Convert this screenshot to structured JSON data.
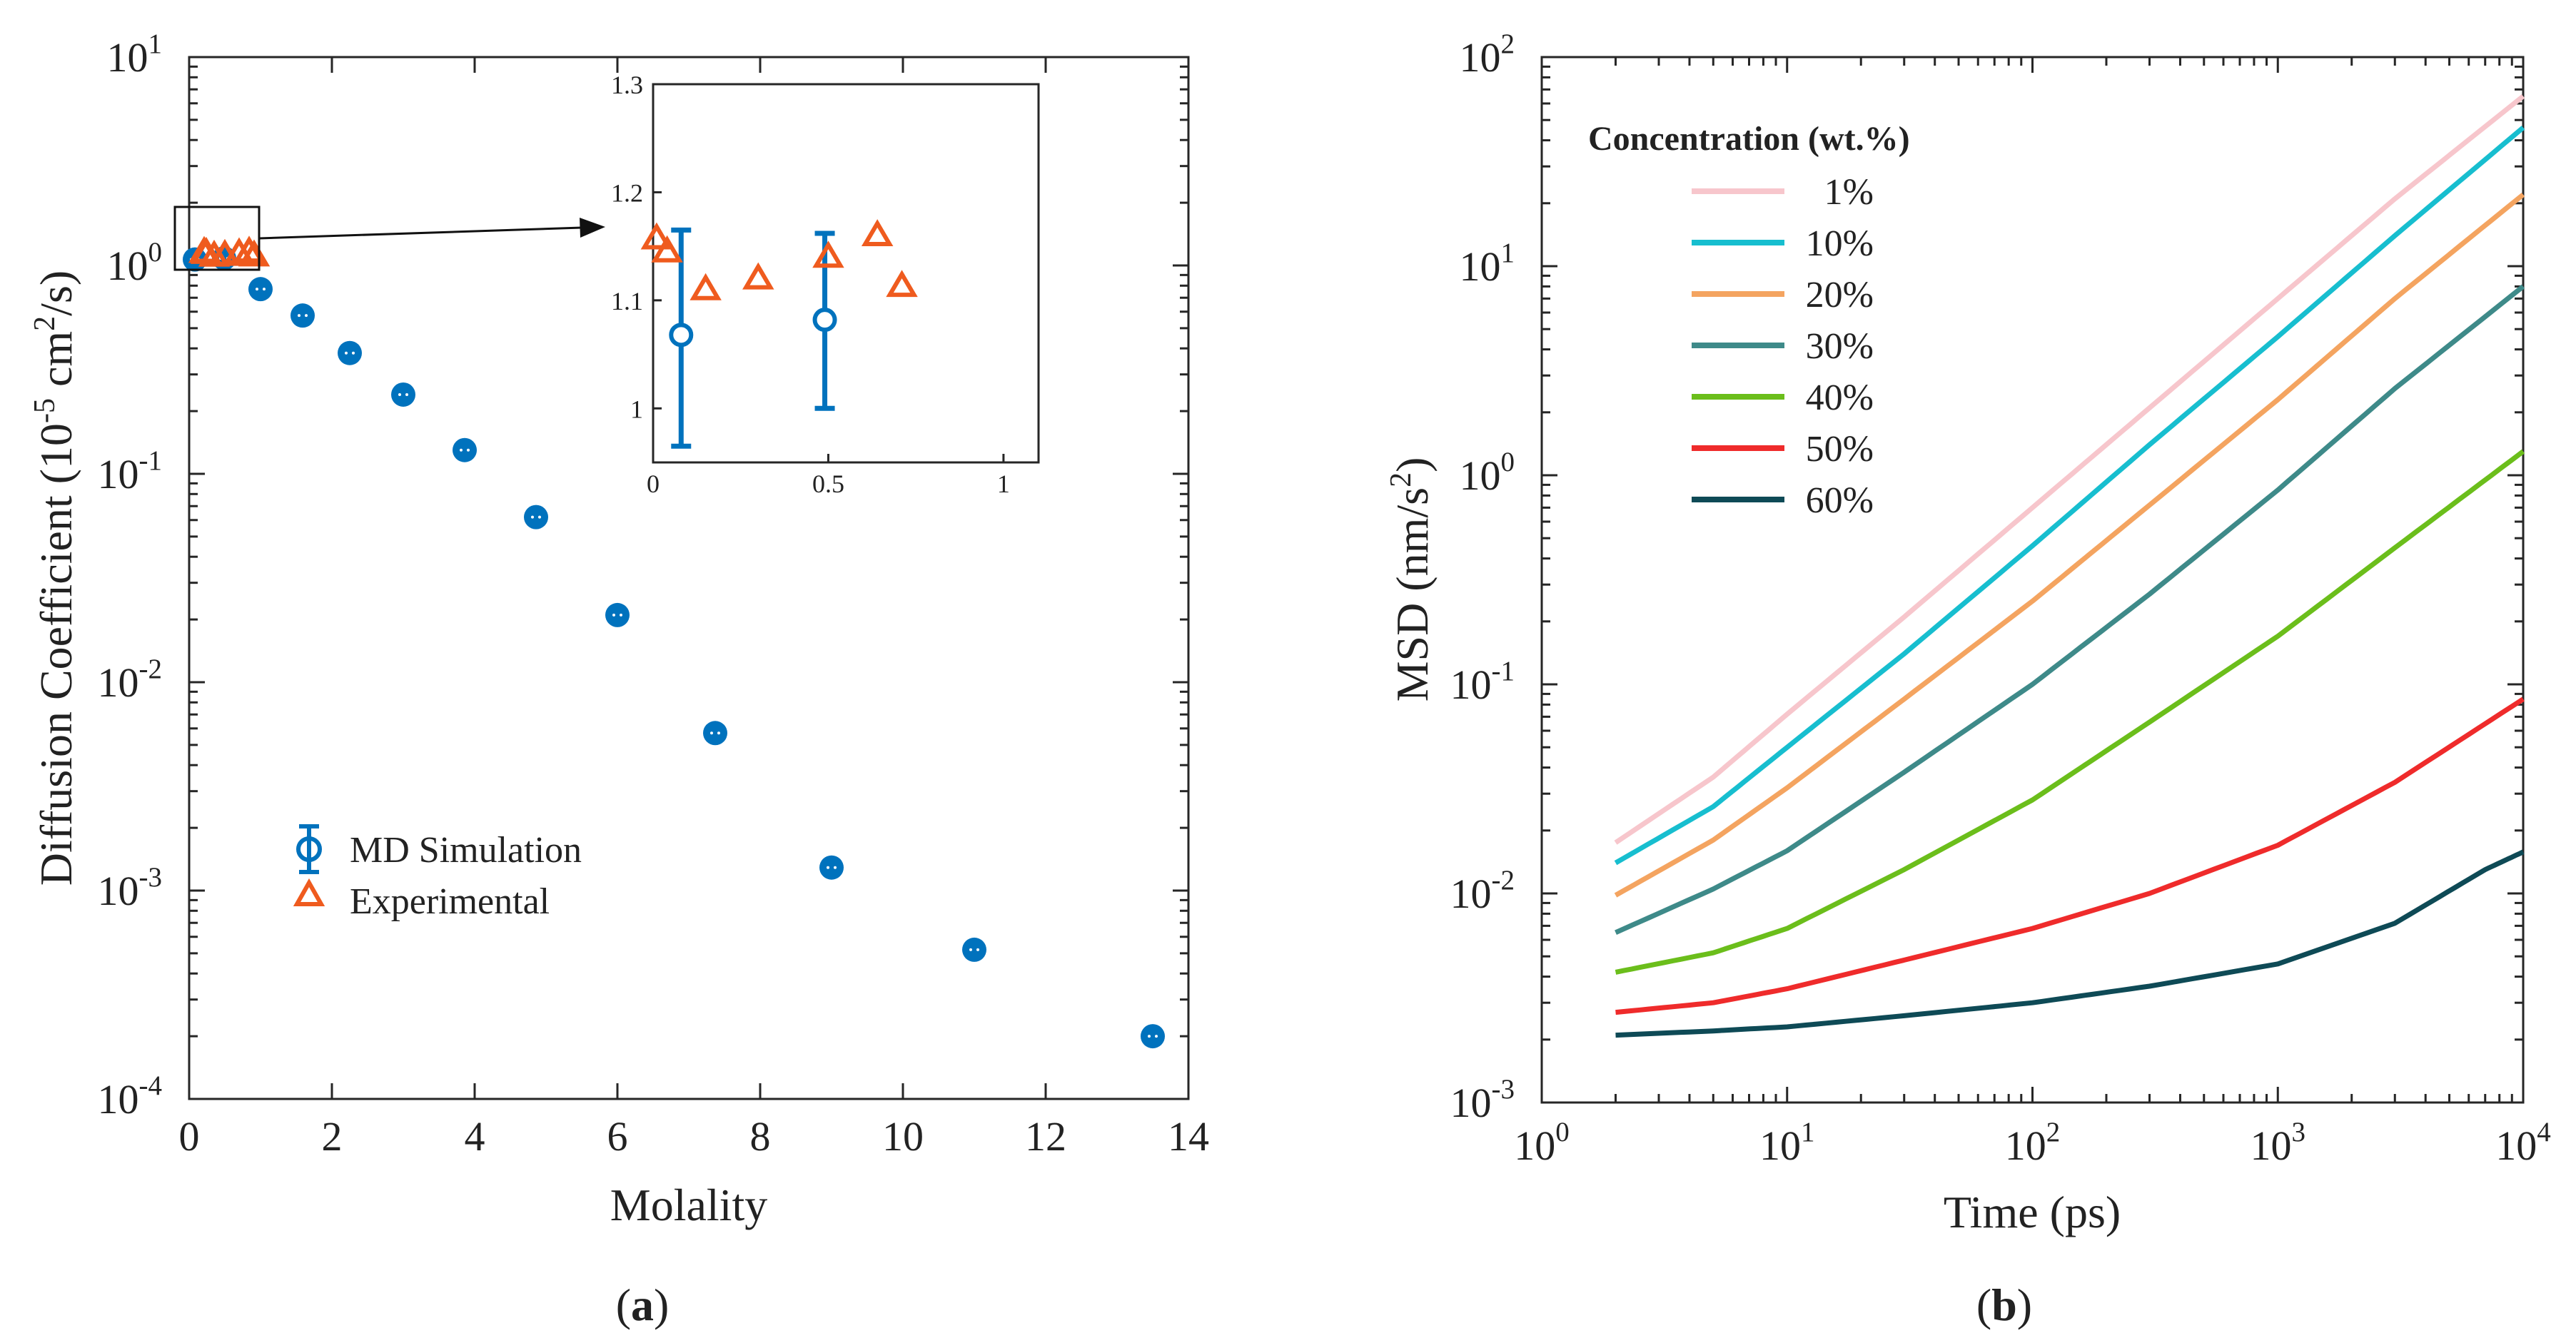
{
  "chart_data": [
    {
      "type": "scatter",
      "panel_label_prefix": "(",
      "panel_label": "a",
      "panel_label_suffix": ")",
      "title": "",
      "xlabel": "Molality",
      "ylabel_main": "Diffusion Coefficient (10",
      "ylabel_exp": "-5",
      "ylabel_mid": " cm",
      "ylabel_exp2": "2",
      "ylabel_tail": "/s)",
      "xscale": "linear",
      "yscale": "log",
      "xlim": [
        0,
        14
      ],
      "ylim": [
        0.0001,
        10
      ],
      "xticks": [
        "0",
        "2",
        "4",
        "6",
        "8",
        "10",
        "12",
        "14"
      ],
      "yticks": [
        {
          "base": "10",
          "exp": "-4"
        },
        {
          "base": "10",
          "exp": "-3"
        },
        {
          "base": "10",
          "exp": "-2"
        },
        {
          "base": "10",
          "exp": "-1"
        },
        {
          "base": "10",
          "exp": "0"
        },
        {
          "base": "10",
          "exp": "1"
        }
      ],
      "colors": {
        "md": "#0072BD",
        "exp": "#EF5B1E"
      },
      "legend": {
        "position": "lower-left",
        "entries": [
          "MD Simulation",
          "Experimental"
        ]
      },
      "series": [
        {
          "name": "MD Simulation",
          "marker": "circle",
          "x": [
            0.08,
            0.49,
            1.0,
            1.59,
            2.25,
            3.0,
            3.86,
            4.86,
            6.0,
            7.37,
            9.0,
            11.0,
            13.5
          ],
          "y": [
            1.068,
            1.082,
            0.77,
            0.575,
            0.38,
            0.24,
            0.13,
            0.062,
            0.021,
            0.0057,
            0.00129,
            0.00052,
            0.0002
          ]
        },
        {
          "name": "Experimental",
          "marker": "triangle",
          "x": [
            0.01,
            0.04,
            0.15,
            0.3,
            0.5,
            0.64,
            0.71
          ],
          "y": [
            1.157,
            1.145,
            1.11,
            1.12,
            1.14,
            1.16,
            1.113
          ]
        }
      ],
      "inset": {
        "xlim": [
          0,
          1.1
        ],
        "ylim": [
          0.95,
          1.3
        ],
        "xticks": [
          "0",
          "0.5",
          "1"
        ],
        "yticks": [
          "1",
          "1.1",
          "1.2",
          "1.3"
        ],
        "md_errorbars": [
          {
            "x": 0.08,
            "y": 1.068,
            "low": 0.965,
            "high": 1.165
          },
          {
            "x": 0.49,
            "y": 1.082,
            "low": 1.0,
            "high": 1.162
          }
        ]
      }
    },
    {
      "type": "line",
      "panel_label_prefix": "(",
      "panel_label": "b",
      "panel_label_suffix": ")",
      "title": "",
      "xlabel": "Time (ps)",
      "ylabel_main": "MSD (nm/s",
      "ylabel_exp": "2",
      "ylabel_tail": ")",
      "xscale": "log",
      "yscale": "log",
      "xlim": [
        1,
        10000
      ],
      "ylim": [
        0.001,
        100
      ],
      "xticks": [
        {
          "base": "10",
          "exp": "0"
        },
        {
          "base": "10",
          "exp": "1"
        },
        {
          "base": "10",
          "exp": "2"
        },
        {
          "base": "10",
          "exp": "3"
        },
        {
          "base": "10",
          "exp": "4"
        }
      ],
      "yticks": [
        {
          "base": "10",
          "exp": "-3"
        },
        {
          "base": "10",
          "exp": "-2"
        },
        {
          "base": "10",
          "exp": "-1"
        },
        {
          "base": "10",
          "exp": "0"
        },
        {
          "base": "10",
          "exp": "1"
        },
        {
          "base": "10",
          "exp": "2"
        }
      ],
      "legend": {
        "position": "top-left",
        "title": "Concentration (wt.%)"
      },
      "series": [
        {
          "name": "1%",
          "color": "#F7C6CC",
          "x": [
            2,
            5,
            10,
            30,
            100,
            300,
            1000,
            3000,
            10000
          ],
          "y": [
            0.0175,
            0.036,
            0.072,
            0.21,
            0.7,
            2.1,
            7.0,
            21.0,
            65.0
          ]
        },
        {
          "name": "10%",
          "color": "#17BECF",
          "x": [
            2,
            5,
            10,
            30,
            100,
            300,
            1000,
            3000,
            10000
          ],
          "y": [
            0.014,
            0.026,
            0.05,
            0.14,
            0.46,
            1.4,
            4.6,
            14.0,
            46.0
          ]
        },
        {
          "name": "20%",
          "color": "#F4A460",
          "x": [
            2,
            5,
            10,
            30,
            100,
            300,
            1000,
            3000,
            10000
          ],
          "y": [
            0.0098,
            0.018,
            0.032,
            0.085,
            0.25,
            0.72,
            2.3,
            7.0,
            22.0
          ]
        },
        {
          "name": "30%",
          "color": "#3E8A89",
          "x": [
            2,
            5,
            10,
            30,
            100,
            300,
            1000,
            3000,
            10000
          ],
          "y": [
            0.0065,
            0.0105,
            0.016,
            0.038,
            0.1,
            0.27,
            0.85,
            2.6,
            8.0
          ]
        },
        {
          "name": "40%",
          "color": "#6BBE1B",
          "x": [
            2,
            5,
            10,
            30,
            100,
            300,
            1000,
            3000,
            10000
          ],
          "y": [
            0.0042,
            0.0052,
            0.0068,
            0.013,
            0.028,
            0.066,
            0.17,
            0.45,
            1.3
          ]
        },
        {
          "name": "50%",
          "color": "#EF2B2B",
          "x": [
            2,
            5,
            10,
            30,
            100,
            300,
            1000,
            3000,
            10000
          ],
          "y": [
            0.0027,
            0.003,
            0.0035,
            0.0048,
            0.0068,
            0.01,
            0.017,
            0.034,
            0.085
          ]
        },
        {
          "name": "60%",
          "color": "#0E4A56",
          "x": [
            2,
            5,
            10,
            30,
            100,
            300,
            1000,
            3000,
            7000,
            10000
          ],
          "y": [
            0.0021,
            0.0022,
            0.0023,
            0.0026,
            0.003,
            0.0036,
            0.0046,
            0.0072,
            0.013,
            0.0158
          ]
        }
      ]
    }
  ]
}
